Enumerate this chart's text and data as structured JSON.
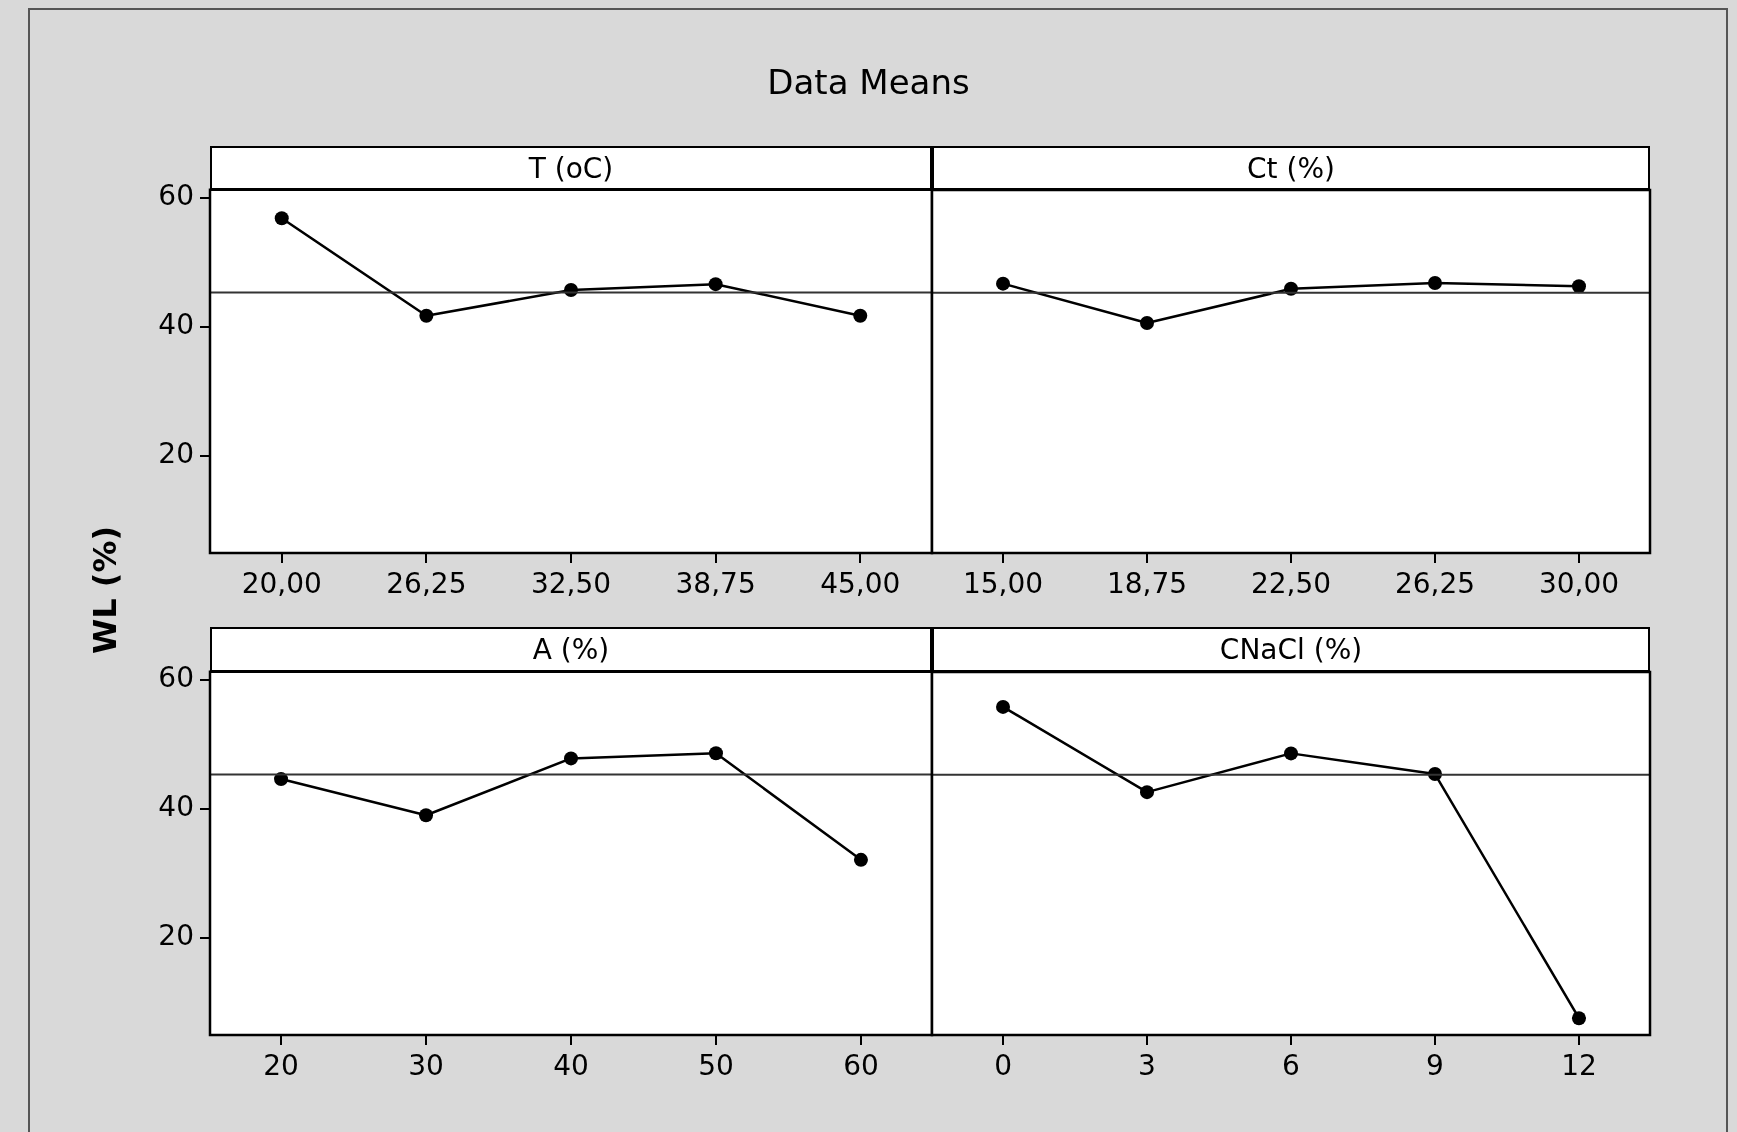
{
  "chart_data": [
    {
      "type": "line",
      "title": "Data Means",
      "ylabel": "WL (%)",
      "subtitle": "T (oC)",
      "x": [
        20,
        26.25,
        32.5,
        38.75,
        45
      ],
      "values": [
        56.8,
        41.7,
        45.7,
        46.6,
        41.7
      ],
      "color": "#000000",
      "marker": "circle",
      "xlim": [
        16.9,
        48.1
      ],
      "xticks": [
        {
          "value": 20,
          "label": "20,00"
        },
        {
          "value": 26.25,
          "label": "26,25"
        },
        {
          "value": 32.5,
          "label": "32,50"
        },
        {
          "value": 38.75,
          "label": "38,75"
        },
        {
          "value": 45,
          "label": "45,00"
        }
      ],
      "ylim": [
        5,
        61.2
      ],
      "yticks": [
        20,
        40,
        60
      ],
      "ref_lines": [
        {
          "axis": "y",
          "value": 45.3,
          "color": "#333333"
        }
      ]
    },
    {
      "type": "line",
      "subtitle": "Ct (%)",
      "x": [
        15,
        18.75,
        22.5,
        26.25,
        30
      ],
      "values": [
        46.7,
        40.6,
        45.9,
        46.8,
        46.3
      ],
      "color": "#000000",
      "marker": "circle",
      "xlim": [
        13.15,
        31.85
      ],
      "xticks": [
        {
          "value": 15,
          "label": "15,00"
        },
        {
          "value": 18.75,
          "label": "18,75"
        },
        {
          "value": 22.5,
          "label": "22,50"
        },
        {
          "value": 26.25,
          "label": "26,25"
        },
        {
          "value": 30,
          "label": "30,00"
        }
      ],
      "ylim": [
        5,
        61.2
      ],
      "yticks": [
        20,
        40,
        60
      ],
      "ref_lines": [
        {
          "axis": "y",
          "value": 45.3,
          "color": "#333333"
        }
      ],
      "tick_labels": "x"
    },
    {
      "type": "line",
      "subtitle": "A (%)",
      "x": [
        20,
        30,
        40,
        50,
        60
      ],
      "values": [
        44.6,
        39.0,
        47.8,
        48.6,
        32.1
      ],
      "color": "#000000",
      "marker": "circle",
      "xlim": [
        15.1,
        64.9
      ],
      "xticks": [
        20,
        30,
        40,
        50,
        60
      ],
      "ylim": [
        5,
        61.2
      ],
      "yticks": [
        20,
        40,
        60
      ],
      "ref_lines": [
        {
          "axis": "y",
          "value": 45.3,
          "color": "#333333"
        }
      ]
    },
    {
      "type": "line",
      "subtitle": "CNaCl (%)",
      "x": [
        0,
        3,
        6,
        9,
        12
      ],
      "values": [
        55.8,
        42.6,
        48.6,
        45.4,
        7.6
      ],
      "color": "#000000",
      "marker": "circle",
      "xlim": [
        -1.48,
        13.48
      ],
      "xticks": [
        0,
        3,
        6,
        9,
        12
      ],
      "ylim": [
        5,
        61.2
      ],
      "yticks": [
        20,
        40,
        60
      ],
      "ref_lines": [
        {
          "axis": "y",
          "value": 45.3,
          "color": "#333333"
        }
      ],
      "tick_labels": "x"
    }
  ]
}
